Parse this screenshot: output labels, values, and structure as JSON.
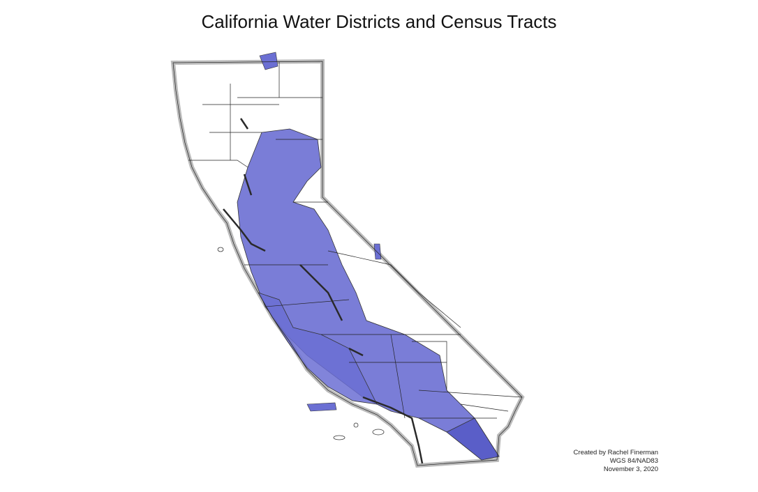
{
  "title": "California Water Districts and Census Tracts",
  "credits": {
    "author": "Created by Rachel Finerman",
    "crs": "WGS 84/NAD83",
    "date": "November 3, 2020"
  },
  "colors": {
    "water_district_fill": "#6b6fd3",
    "boundary_stroke": "#222222",
    "background": "#ffffff"
  },
  "layers": [
    "water districts",
    "census tracts",
    "california boundary"
  ]
}
